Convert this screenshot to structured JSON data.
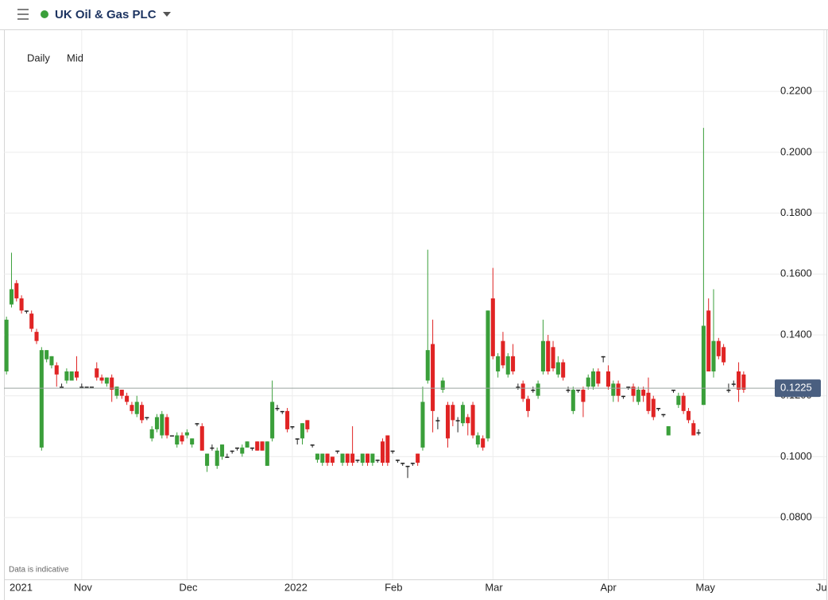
{
  "header": {
    "title": "UK Oil & Gas PLC"
  },
  "controls": {
    "interval": "Daily",
    "price_type": "Mid"
  },
  "chart_data": {
    "type": "candlestick",
    "note": "Data is indicative",
    "up_color": "#3a9f3a",
    "down_color": "#e02424",
    "flat_color": "#222222",
    "grid": true,
    "last_price": 0.1225,
    "xlim": [
      -0.5,
      163.5
    ],
    "xticks": [
      {
        "value": 3,
        "label": "2021"
      },
      {
        "value": 15,
        "label": "Nov"
      },
      {
        "value": 36,
        "label": "Dec"
      },
      {
        "value": 57,
        "label": "2022"
      },
      {
        "value": 77,
        "label": "Feb"
      },
      {
        "value": 97,
        "label": "Mar"
      },
      {
        "value": 120,
        "label": "Apr"
      },
      {
        "value": 139,
        "label": "May"
      },
      {
        "value": 163,
        "label": "Ju"
      }
    ],
    "ylim": [
      0.0597,
      0.2401
    ],
    "yticks": [
      {
        "value": 0.08,
        "label": "0.0800"
      },
      {
        "value": 0.1,
        "label": "0.1000"
      },
      {
        "value": 0.12,
        "label": "0.1200"
      },
      {
        "value": 0.14,
        "label": "0.1400"
      },
      {
        "value": 0.16,
        "label": "0.1600"
      },
      {
        "value": 0.18,
        "label": "0.1800"
      },
      {
        "value": 0.2,
        "label": "0.2000"
      },
      {
        "value": 0.22,
        "label": "0.2200"
      }
    ],
    "ohlc": [
      [
        0.128,
        0.146,
        0.127,
        0.145
      ],
      [
        0.15,
        0.167,
        0.149,
        0.155
      ],
      [
        0.157,
        0.158,
        0.151,
        0.152
      ],
      [
        0.152,
        0.153,
        0.147,
        0.148
      ],
      [
        0.148,
        0.148,
        0.147,
        0.148
      ],
      [
        0.147,
        0.148,
        0.141,
        0.142
      ],
      [
        0.141,
        0.142,
        0.137,
        0.138
      ],
      [
        0.103,
        0.136,
        0.102,
        0.135
      ],
      [
        0.132,
        0.135,
        0.131,
        0.135
      ],
      [
        0.13,
        0.133,
        0.129,
        0.133
      ],
      [
        0.13,
        0.131,
        0.123,
        0.127
      ],
      [
        0.123,
        0.124,
        0.123,
        0.123
      ],
      [
        0.125,
        0.129,
        0.124,
        0.128
      ],
      [
        0.125,
        0.128,
        0.125,
        0.128
      ],
      [
        0.128,
        0.133,
        0.125,
        0.126
      ],
      [
        0.123,
        0.124,
        0.123,
        0.123
      ],
      [
        0.123,
        0.123,
        0.123,
        0.123
      ],
      [
        0.123,
        0.123,
        0.123,
        0.123
      ],
      [
        0.129,
        0.131,
        0.125,
        0.126
      ],
      [
        0.126,
        0.127,
        0.124,
        0.125
      ],
      [
        0.124,
        0.126,
        0.123,
        0.126
      ],
      [
        0.126,
        0.127,
        0.118,
        0.122
      ],
      [
        0.12,
        0.123,
        0.119,
        0.123
      ],
      [
        0.122,
        0.122,
        0.119,
        0.12
      ],
      [
        0.12,
        0.121,
        0.117,
        0.118
      ],
      [
        0.117,
        0.118,
        0.114,
        0.115
      ],
      [
        0.114,
        0.12,
        0.113,
        0.118
      ],
      [
        0.117,
        0.118,
        0.111,
        0.112
      ],
      [
        0.113,
        0.113,
        0.112,
        0.113
      ],
      [
        0.106,
        0.11,
        0.105,
        0.109
      ],
      [
        0.109,
        0.114,
        0.108,
        0.113
      ],
      [
        0.107,
        0.115,
        0.106,
        0.114
      ],
      [
        0.113,
        0.114,
        0.106,
        0.107
      ],
      [
        0.107,
        0.107,
        0.107,
        0.107
      ],
      [
        0.104,
        0.108,
        0.103,
        0.107
      ],
      [
        0.107,
        0.108,
        0.104,
        0.105
      ],
      [
        0.107,
        0.109,
        0.106,
        0.108
      ],
      [
        0.104,
        0.106,
        0.103,
        0.106
      ],
      [
        0.111,
        0.111,
        0.11,
        0.111
      ],
      [
        0.11,
        0.111,
        0.102,
        0.102
      ],
      [
        0.097,
        0.101,
        0.095,
        0.101
      ],
      [
        0.103,
        0.104,
        0.102,
        0.103
      ],
      [
        0.097,
        0.103,
        0.096,
        0.102
      ],
      [
        0.1,
        0.104,
        0.099,
        0.104
      ],
      [
        0.1,
        0.101,
        0.1,
        0.1
      ],
      [
        0.102,
        0.102,
        0.101,
        0.102
      ],
      [
        0.103,
        0.103,
        0.102,
        0.103
      ],
      [
        0.101,
        0.104,
        0.1,
        0.103
      ],
      [
        0.103,
        0.105,
        0.103,
        0.105
      ],
      [
        0.103,
        0.103,
        0.102,
        0.103
      ],
      [
        0.105,
        0.105,
        0.102,
        0.102
      ],
      [
        0.105,
        0.105,
        0.102,
        0.102
      ],
      [
        0.097,
        0.105,
        0.097,
        0.105
      ],
      [
        0.106,
        0.125,
        0.105,
        0.118
      ],
      [
        0.116,
        0.117,
        0.115,
        0.116
      ],
      [
        0.115,
        0.115,
        0.114,
        0.115
      ],
      [
        0.115,
        0.116,
        0.108,
        0.109
      ],
      [
        0.11,
        0.11,
        0.109,
        0.11
      ],
      [
        0.106,
        0.106,
        0.104,
        0.106
      ],
      [
        0.106,
        0.111,
        0.104,
        0.111
      ],
      [
        0.112,
        0.112,
        0.108,
        0.109
      ],
      [
        0.104,
        0.104,
        0.103,
        0.104
      ],
      [
        0.099,
        0.101,
        0.098,
        0.101
      ],
      [
        0.098,
        0.101,
        0.097,
        0.101
      ],
      [
        0.101,
        0.101,
        0.097,
        0.098
      ],
      [
        0.1,
        0.1,
        0.097,
        0.098
      ],
      [
        0.102,
        0.102,
        0.101,
        0.102
      ],
      [
        0.098,
        0.101,
        0.097,
        0.101
      ],
      [
        0.101,
        0.101,
        0.097,
        0.098
      ],
      [
        0.101,
        0.11,
        0.097,
        0.098
      ],
      [
        0.099,
        0.099,
        0.098,
        0.099
      ],
      [
        0.098,
        0.101,
        0.097,
        0.101
      ],
      [
        0.101,
        0.101,
        0.097,
        0.098
      ],
      [
        0.098,
        0.101,
        0.097,
        0.101
      ],
      [
        0.099,
        0.099,
        0.098,
        0.099
      ],
      [
        0.105,
        0.106,
        0.097,
        0.098
      ],
      [
        0.107,
        0.107,
        0.097,
        0.098
      ],
      [
        0.102,
        0.102,
        0.101,
        0.102
      ],
      [
        0.099,
        0.099,
        0.098,
        0.099
      ],
      [
        0.098,
        0.098,
        0.097,
        0.098
      ],
      [
        0.097,
        0.097,
        0.093,
        0.097
      ],
      [
        0.098,
        0.098,
        0.097,
        0.098
      ],
      [
        0.101,
        0.101,
        0.097,
        0.098
      ],
      [
        0.103,
        0.123,
        0.102,
        0.118
      ],
      [
        0.125,
        0.168,
        0.124,
        0.135
      ],
      [
        0.137,
        0.145,
        0.108,
        0.115
      ],
      [
        0.112,
        0.113,
        0.109,
        0.112
      ],
      [
        0.122,
        0.126,
        0.121,
        0.125
      ],
      [
        0.117,
        0.118,
        0.103,
        0.106
      ],
      [
        0.117,
        0.118,
        0.11,
        0.112
      ],
      [
        0.112,
        0.113,
        0.108,
        0.112
      ],
      [
        0.111,
        0.118,
        0.11,
        0.117
      ],
      [
        0.113,
        0.114,
        0.107,
        0.111
      ],
      [
        0.117,
        0.118,
        0.106,
        0.107
      ],
      [
        0.104,
        0.108,
        0.103,
        0.107
      ],
      [
        0.106,
        0.107,
        0.102,
        0.103
      ],
      [
        0.106,
        0.148,
        0.105,
        0.148
      ],
      [
        0.152,
        0.162,
        0.132,
        0.133
      ],
      [
        0.128,
        0.134,
        0.126,
        0.133
      ],
      [
        0.138,
        0.141,
        0.129,
        0.13
      ],
      [
        0.127,
        0.134,
        0.126,
        0.133
      ],
      [
        0.133,
        0.137,
        0.127,
        0.128
      ],
      [
        0.123,
        0.124,
        0.122,
        0.123
      ],
      [
        0.124,
        0.125,
        0.118,
        0.119
      ],
      [
        0.119,
        0.12,
        0.113,
        0.115
      ],
      [
        0.122,
        0.123,
        0.121,
        0.122
      ],
      [
        0.12,
        0.125,
        0.119,
        0.124
      ],
      [
        0.128,
        0.145,
        0.127,
        0.138
      ],
      [
        0.138,
        0.14,
        0.127,
        0.128
      ],
      [
        0.136,
        0.138,
        0.128,
        0.129
      ],
      [
        0.127,
        0.133,
        0.126,
        0.131
      ],
      [
        0.131,
        0.132,
        0.125,
        0.126
      ],
      [
        0.122,
        0.123,
        0.121,
        0.122
      ],
      [
        0.115,
        0.123,
        0.114,
        0.122
      ],
      [
        0.122,
        0.122,
        0.121,
        0.122
      ],
      [
        0.122,
        0.123,
        0.113,
        0.118
      ],
      [
        0.123,
        0.127,
        0.122,
        0.126
      ],
      [
        0.123,
        0.129,
        0.122,
        0.128
      ],
      [
        0.128,
        0.129,
        0.123,
        0.124
      ],
      [
        0.133,
        0.133,
        0.131,
        0.133
      ],
      [
        0.128,
        0.13,
        0.122,
        0.123
      ],
      [
        0.12,
        0.125,
        0.118,
        0.124
      ],
      [
        0.124,
        0.125,
        0.118,
        0.12
      ],
      [
        0.12,
        0.12,
        0.119,
        0.12
      ],
      [
        0.123,
        0.123,
        0.122,
        0.123
      ],
      [
        0.123,
        0.124,
        0.118,
        0.12
      ],
      [
        0.118,
        0.123,
        0.117,
        0.122
      ],
      [
        0.122,
        0.123,
        0.118,
        0.12
      ],
      [
        0.121,
        0.126,
        0.114,
        0.115
      ],
      [
        0.119,
        0.12,
        0.112,
        0.113
      ],
      [
        0.116,
        0.116,
        0.115,
        0.116
      ],
      [
        0.114,
        0.114,
        0.113,
        0.114
      ],
      [
        0.107,
        0.11,
        0.107,
        0.11
      ],
      [
        0.122,
        0.122,
        0.121,
        0.122
      ],
      [
        0.117,
        0.121,
        0.116,
        0.12
      ],
      [
        0.12,
        0.121,
        0.114,
        0.115
      ],
      [
        0.115,
        0.116,
        0.111,
        0.112
      ],
      [
        0.111,
        0.112,
        0.107,
        0.107
      ],
      [
        0.108,
        0.109,
        0.107,
        0.108
      ],
      [
        0.117,
        0.208,
        0.117,
        0.143
      ],
      [
        0.148,
        0.152,
        0.128,
        0.128
      ],
      [
        0.128,
        0.155,
        0.126,
        0.138
      ],
      [
        0.138,
        0.139,
        0.132,
        0.133
      ],
      [
        0.136,
        0.137,
        0.13,
        0.131
      ],
      [
        0.122,
        0.124,
        0.121,
        0.122
      ],
      [
        0.124,
        0.125,
        0.123,
        0.124
      ],
      [
        0.128,
        0.131,
        0.118,
        0.122
      ],
      [
        0.127,
        0.128,
        0.121,
        0.122
      ]
    ]
  }
}
